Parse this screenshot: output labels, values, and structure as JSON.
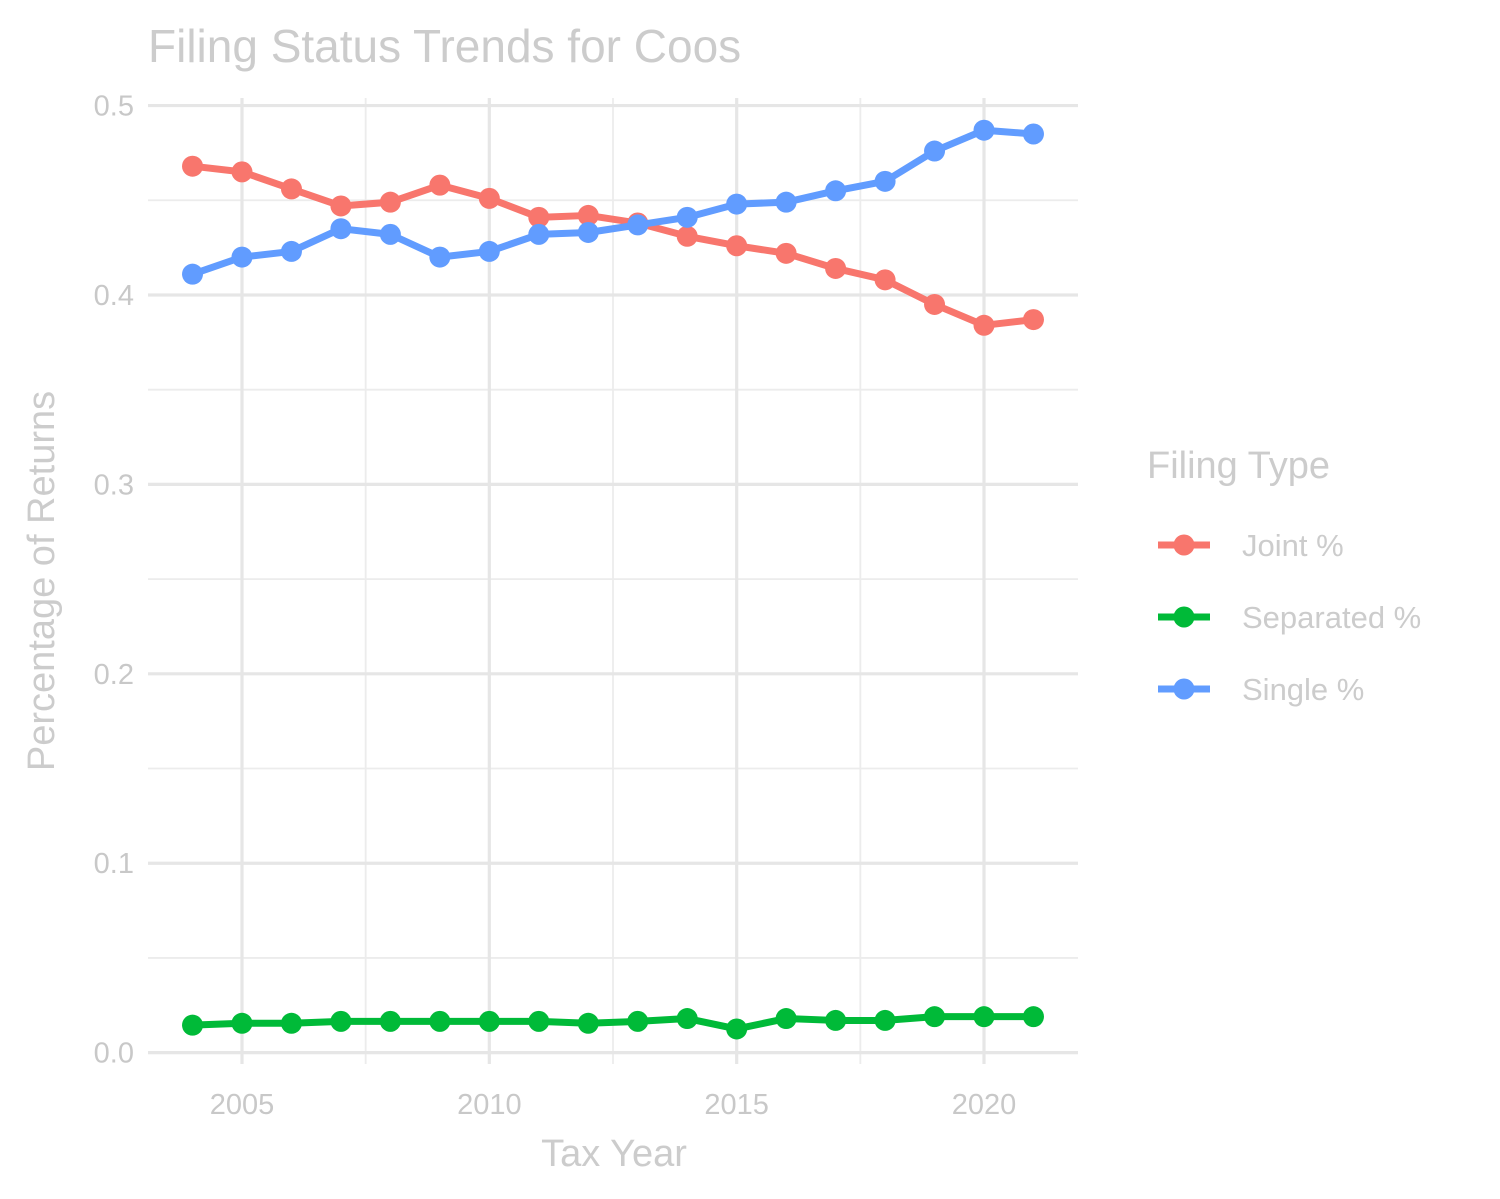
{
  "chart_data": {
    "type": "line",
    "title": "Filing Status Trends for Coos",
    "xlabel": "Tax Year",
    "ylabel": "Percentage of Returns",
    "xlim": [
      2003.1,
      2021.9
    ],
    "ylim": [
      -0.006,
      0.504
    ],
    "x_ticks": [
      2005,
      2010,
      2015,
      2020
    ],
    "y_ticks": [
      0.0,
      0.1,
      0.2,
      0.3,
      0.4,
      0.5
    ],
    "x_tick_labels": [
      "2005",
      "2010",
      "2015",
      "2020"
    ],
    "y_tick_labels": [
      "0.0",
      "0.1",
      "0.2",
      "0.3",
      "0.4",
      "0.5"
    ],
    "grid": true,
    "legend": {
      "title": "Filing Type",
      "position": "right"
    },
    "x": [
      2004,
      2005,
      2006,
      2007,
      2008,
      2009,
      2010,
      2011,
      2012,
      2013,
      2014,
      2015,
      2016,
      2017,
      2018,
      2019,
      2020,
      2021
    ],
    "series": [
      {
        "name": "Joint %",
        "color": "#F8766D",
        "values": [
          0.468,
          0.465,
          0.456,
          0.447,
          0.449,
          0.458,
          0.451,
          0.441,
          0.442,
          0.438,
          0.431,
          0.426,
          0.422,
          0.414,
          0.408,
          0.395,
          0.384,
          0.387
        ]
      },
      {
        "name": "Separated %",
        "color": "#00BA38",
        "values": [
          0.0145,
          0.0155,
          0.0155,
          0.0165,
          0.0165,
          0.0165,
          0.0165,
          0.0165,
          0.0155,
          0.0165,
          0.018,
          0.0125,
          0.018,
          0.017,
          0.017,
          0.019,
          0.019,
          0.019
        ]
      },
      {
        "name": "Single %",
        "color": "#619CFF",
        "values": [
          0.411,
          0.42,
          0.423,
          0.435,
          0.432,
          0.42,
          0.423,
          0.432,
          0.433,
          0.437,
          0.441,
          0.448,
          0.449,
          0.455,
          0.46,
          0.476,
          0.487,
          0.485
        ]
      }
    ]
  }
}
